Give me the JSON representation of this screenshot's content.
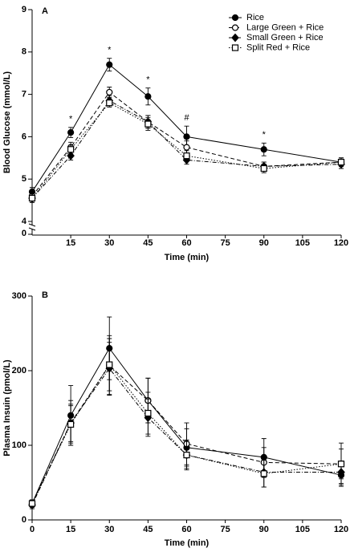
{
  "chart_data": [
    {
      "type": "line",
      "panel": "A",
      "ylabel": "Blood Glucose (mmol/L)",
      "xlabel": "Time (min)",
      "x": [
        0,
        15,
        30,
        45,
        60,
        90,
        120
      ],
      "xlim": [
        0,
        120
      ],
      "xticks": [
        15,
        30,
        45,
        60,
        75,
        90,
        105,
        120
      ],
      "ylim": [
        4,
        9
      ],
      "yticks": [
        4,
        5,
        6,
        7,
        8,
        9
      ],
      "ybreak_label": "0",
      "legend": "upper right",
      "color": "#000000",
      "series": [
        {
          "name": "Rice",
          "marker": "filled-circle",
          "dash": "solid",
          "values": [
            4.7,
            6.1,
            7.7,
            6.95,
            6.0,
            5.7,
            5.4
          ],
          "errors": [
            0.1,
            0.12,
            0.15,
            0.2,
            0.25,
            0.15,
            0.1
          ]
        },
        {
          "name": "Large Green + Rice",
          "marker": "open-circle",
          "dash": "dashed",
          "values": [
            4.6,
            5.75,
            7.05,
            6.35,
            5.75,
            5.3,
            5.4
          ],
          "errors": [
            0.1,
            0.12,
            0.12,
            0.15,
            0.15,
            0.1,
            0.1
          ]
        },
        {
          "name": "Small Green + Rice",
          "marker": "diamond",
          "dash": "dashdot",
          "values": [
            4.55,
            5.55,
            6.85,
            6.35,
            5.45,
            5.3,
            5.35
          ],
          "errors": [
            0.1,
            0.1,
            0.12,
            0.15,
            0.1,
            0.1,
            0.1
          ]
        },
        {
          "name": "Split Red + Rice",
          "marker": "open-square",
          "dash": "dotted",
          "values": [
            4.55,
            5.7,
            6.8,
            6.3,
            5.55,
            5.25,
            5.4
          ],
          "errors": [
            0.1,
            0.1,
            0.1,
            0.15,
            0.12,
            0.1,
            0.1
          ]
        }
      ],
      "annotations": [
        {
          "x": 15,
          "text": "*"
        },
        {
          "x": 30,
          "text": "*"
        },
        {
          "x": 45,
          "text": "*"
        },
        {
          "x": 60,
          "text": "#"
        },
        {
          "x": 90,
          "text": "*"
        }
      ]
    },
    {
      "type": "line",
      "panel": "B",
      "ylabel": "Plasma Insuin (pmol/L)",
      "xlabel": "Time (min)",
      "x": [
        0,
        15,
        30,
        45,
        60,
        90,
        120
      ],
      "xlim": [
        0,
        120
      ],
      "xticks": [
        0,
        15,
        30,
        45,
        60,
        75,
        90,
        105,
        120
      ],
      "ylim": [
        0,
        300
      ],
      "yticks": [
        0,
        100,
        200,
        300
      ],
      "color": "#000000",
      "series": [
        {
          "marker": "filled-circle",
          "dash": "solid",
          "values": [
            22,
            140,
            230,
            160,
            97,
            84,
            60
          ],
          "errors": [
            5,
            40,
            42,
            30,
            25,
            25,
            15
          ]
        },
        {
          "marker": "open-circle",
          "dash": "dashed",
          "values": [
            22,
            130,
            207,
            160,
            102,
            77,
            75
          ],
          "errors": [
            5,
            30,
            40,
            30,
            28,
            20,
            28
          ]
        },
        {
          "marker": "diamond",
          "dash": "dashdot",
          "values": [
            20,
            130,
            203,
            137,
            87,
            64,
            64
          ],
          "errors": [
            5,
            25,
            35,
            25,
            20,
            20,
            15
          ]
        },
        {
          "marker": "open-square",
          "dash": "dotted",
          "values": [
            22,
            128,
            208,
            143,
            87,
            62,
            75
          ],
          "errors": [
            5,
            25,
            35,
            28,
            18,
            18,
            20
          ]
        }
      ]
    }
  ]
}
